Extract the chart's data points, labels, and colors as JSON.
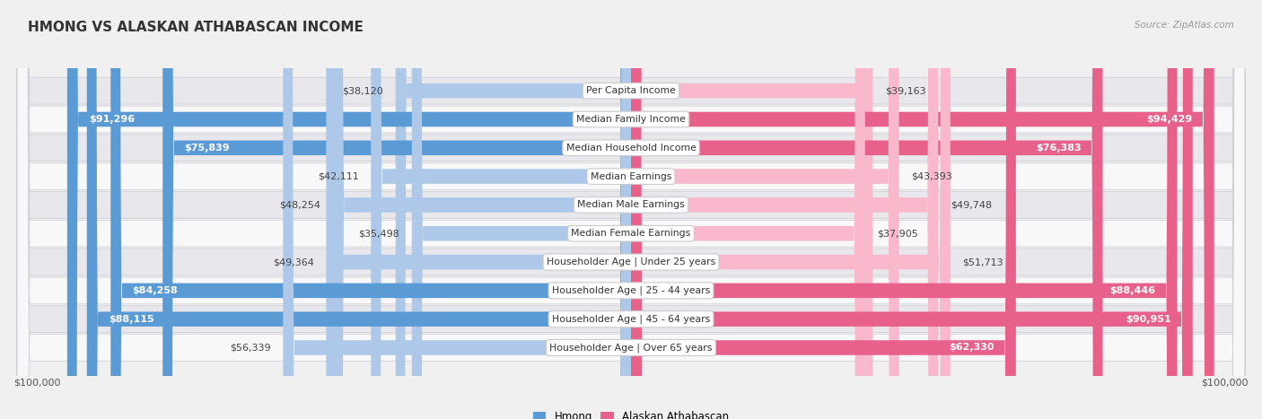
{
  "title": "HMONG VS ALASKAN ATHABASCAN INCOME",
  "source": "Source: ZipAtlas.com",
  "categories": [
    "Per Capita Income",
    "Median Family Income",
    "Median Household Income",
    "Median Earnings",
    "Median Male Earnings",
    "Median Female Earnings",
    "Householder Age | Under 25 years",
    "Householder Age | 25 - 44 years",
    "Householder Age | 45 - 64 years",
    "Householder Age | Over 65 years"
  ],
  "hmong_values": [
    38120,
    91296,
    75839,
    42111,
    48254,
    35498,
    49364,
    84258,
    88115,
    56339
  ],
  "alaskan_values": [
    39163,
    94429,
    76383,
    43393,
    49748,
    37905,
    51713,
    88446,
    90951,
    62330
  ],
  "max_value": 100000,
  "hmong_color_light": "#adc8e8",
  "hmong_color_dark": "#5b9bd5",
  "alaskan_color_light": "#f9b8cc",
  "alaskan_color_dark": "#e8618a",
  "bg_color": "#f0f0f0",
  "row_bg_light": "#f8f8f8",
  "row_bg_dark": "#e8e8ec",
  "label_box_color": "#ffffff",
  "label_box_border": "#cccccc",
  "xlabel_left": "$100,000",
  "xlabel_right": "$100,000",
  "legend_hmong": "Hmong",
  "legend_alaskan": "Alaskan Athabascan",
  "white_text_threshold": 60000,
  "inside_label_threshold": 60000
}
